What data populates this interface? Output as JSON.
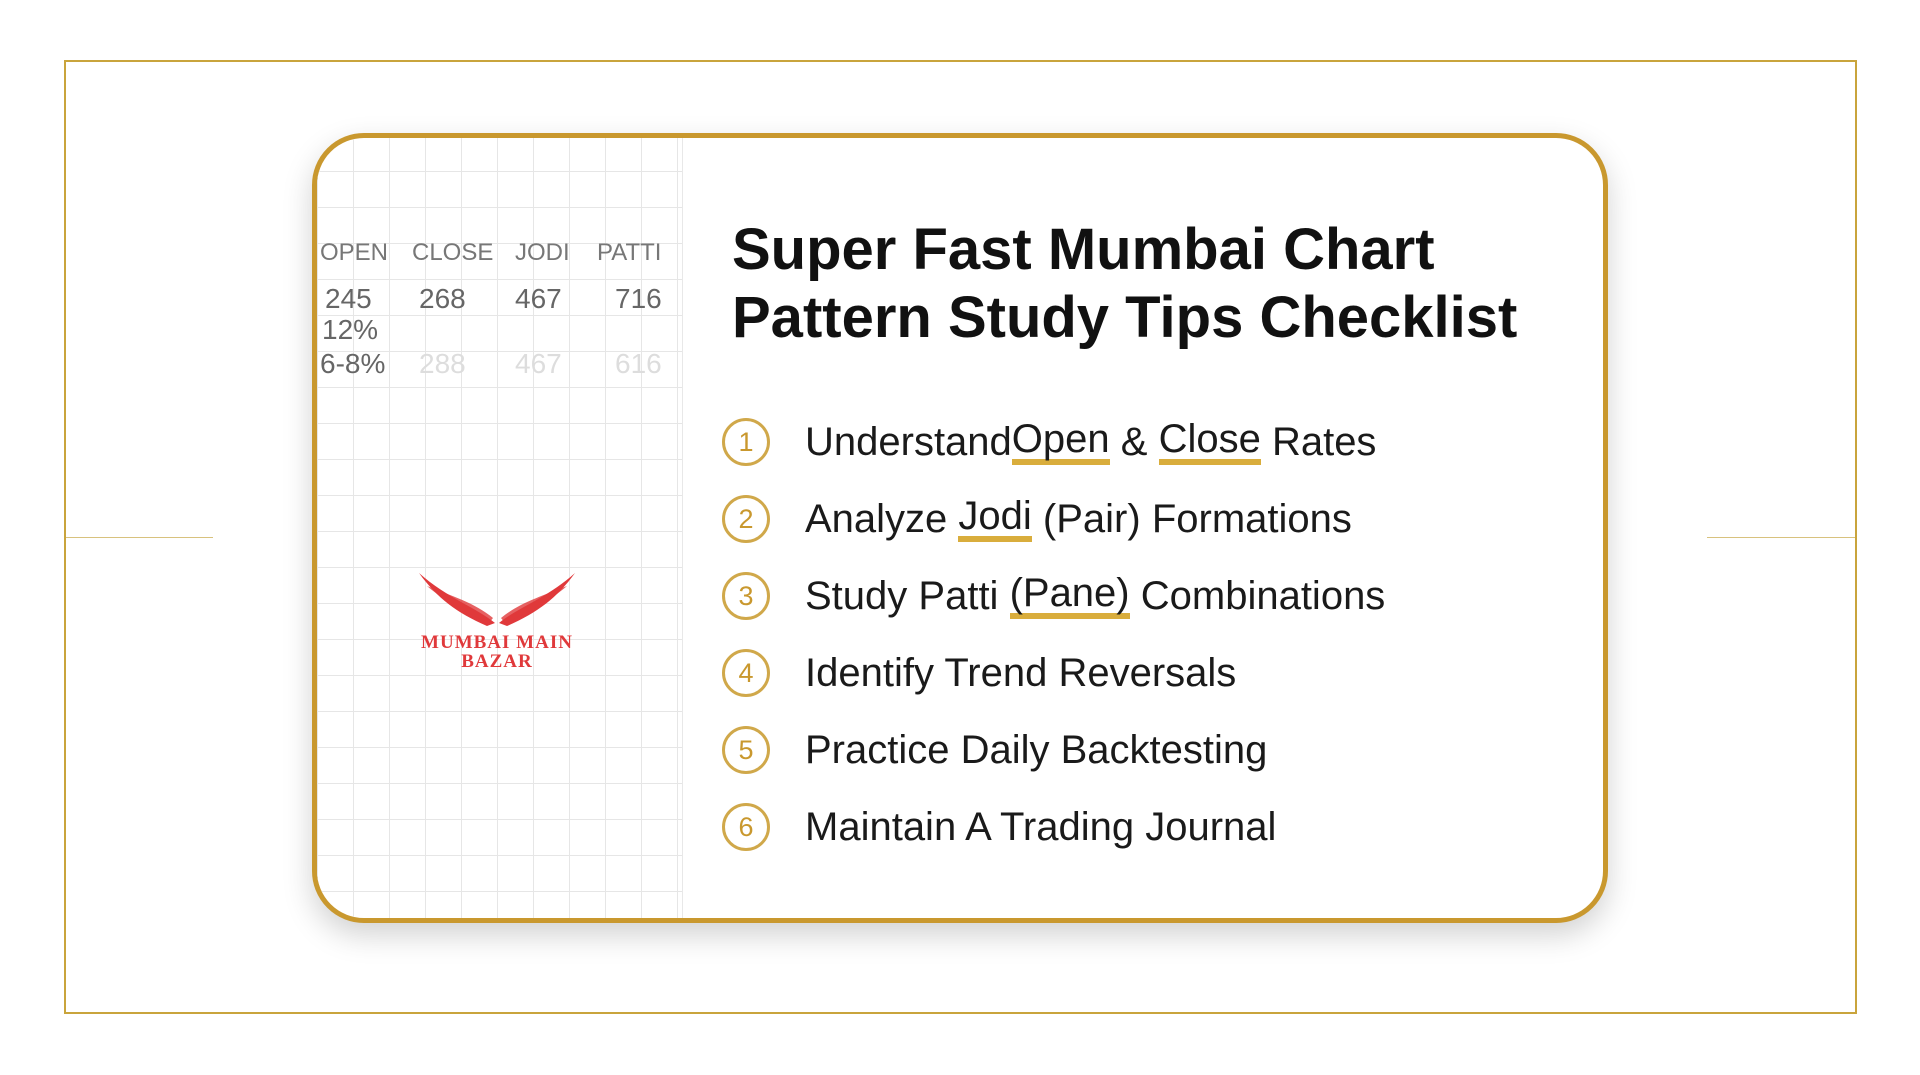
{
  "table": {
    "headers": [
      "OPEN",
      "CLOSE",
      "JODI",
      "PATTI"
    ],
    "row1": [
      "245",
      "268",
      "467",
      "716"
    ],
    "row1_sub": "12%",
    "row2": [
      "6-8%",
      "288",
      "467",
      "616"
    ]
  },
  "logo": {
    "line1": "MUMBAI MAIN",
    "line2": "BAZAR"
  },
  "title": {
    "line1": "Super Fast Mumbai Chart",
    "line2": "Pattern Study Tips Checklist"
  },
  "items": [
    {
      "num": "1",
      "parts": [
        "Understand ",
        "Open",
        " & ",
        "Close",
        " Rates"
      ]
    },
    {
      "num": "2",
      "parts": [
        "Analyze ",
        "Jodi",
        " (Pair) Formations"
      ]
    },
    {
      "num": "3",
      "parts": [
        "Study Patti ",
        "(Pane)",
        " Combinations"
      ]
    },
    {
      "num": "4",
      "text": "Identify Trend Reversals"
    },
    {
      "num": "5",
      "text": "Practice Daily Backtesting"
    },
    {
      "num": "6",
      "text": "Maintain A Trading Journal"
    }
  ],
  "colors": {
    "accent": "#c9982e",
    "logo": "#e0393b"
  }
}
